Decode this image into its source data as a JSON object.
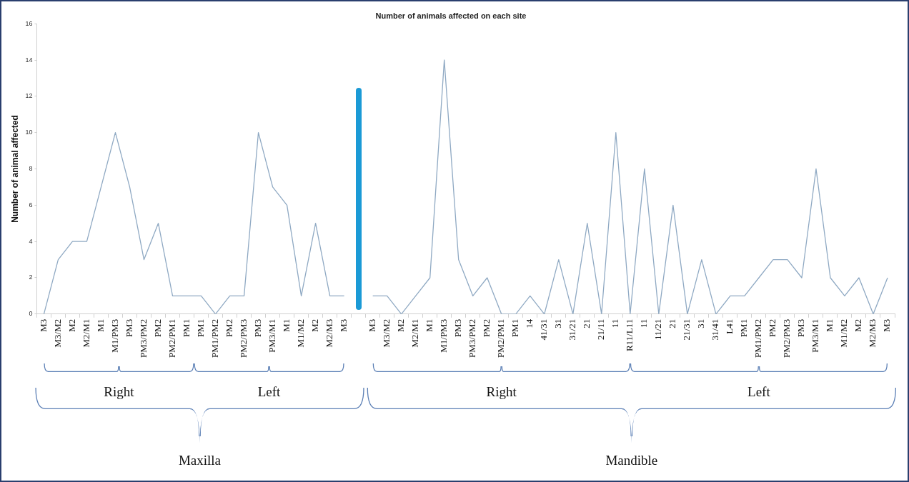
{
  "chart_data": {
    "type": "line",
    "title": "Number of animals affected on each site",
    "ylabel": "Number of animal affected",
    "categories": [
      "M3",
      "M3/M2",
      "M2",
      "M2/M1",
      "M1",
      "M1/PM3",
      "PM3",
      "PM3/PM2",
      "PM2",
      "PM2/PM1",
      "PM1",
      "PM1",
      "PM1/PM2",
      "PM2",
      "PM2/PM3",
      "PM3",
      "PM3/M1",
      "M1",
      "M1/M2",
      "M2",
      "M2/M3",
      "M3",
      null,
      "M3",
      "M3/M2",
      "M2",
      "M2/M1",
      "M1",
      "M1/PM3",
      "PM3",
      "PM3/PM2",
      "PM2",
      "PM2/PM1",
      "PM1",
      "14",
      "41/31",
      "31",
      "31/21",
      "21",
      "21/11",
      "11",
      "R11/L11",
      "11",
      "11/21",
      "21",
      "21/31",
      "31",
      "31/41",
      "L41",
      "PM1",
      "PM1/PM2",
      "PM2",
      "PM2/PM3",
      "PM3",
      "PM3/M1",
      "M1",
      "M1/M2",
      "M2",
      "M2/M3",
      "M3"
    ],
    "series": [
      {
        "color": "#8fa9c3",
        "values": [
          0,
          3,
          4,
          4,
          7,
          10,
          7,
          3,
          5,
          1,
          1,
          1,
          0,
          1,
          1,
          10,
          7,
          6,
          1,
          5,
          1,
          1,
          null,
          1,
          1,
          0,
          1,
          2,
          14,
          3,
          1,
          2,
          0,
          0,
          1,
          0,
          3,
          0,
          5,
          0,
          10,
          0,
          8,
          0,
          6,
          0,
          3,
          0,
          1,
          1,
          2,
          3,
          3,
          2,
          8,
          2,
          1,
          2,
          0,
          2
        ]
      }
    ],
    "ylim": [
      0,
      16
    ],
    "yticks": [
      0,
      2,
      4,
      6,
      8,
      10,
      12,
      14,
      16
    ],
    "marker": "none",
    "annotations": [
      "Right",
      "Left",
      "Right",
      "Left",
      "Maxilla",
      "Mandible"
    ]
  }
}
